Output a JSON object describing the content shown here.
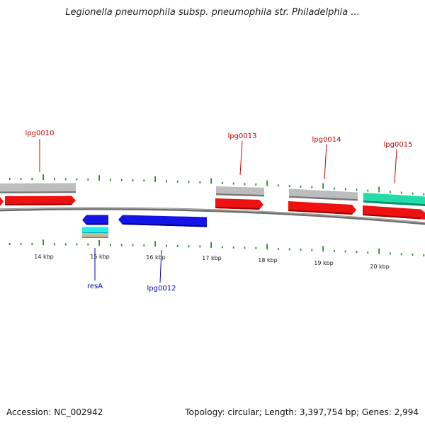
{
  "title": "Legionella pneumophila subsp. pneumophila str. Philadelphia ...",
  "accession": "Accession: NC_002942",
  "summary": "Topology: circular; Length: 3,397,754 bp; Genes: 2,994",
  "colors": {
    "backbone": "#8a8a8a",
    "tick": "#2e8b2e",
    "forward_gene": "#ee1111",
    "reverse_gene": "#1414e6",
    "gray_feature": "#bdbdbd",
    "cyan_feature": "#22eeee",
    "teal_feature": "#22ddaa",
    "tan_feature": "#c8b89a",
    "label_forward": "#cc0000",
    "label_reverse": "#0000bb"
  },
  "scale_labels": [
    "14 kbp",
    "15 kbp",
    "16 kbp",
    "17 kbp",
    "18 kbp",
    "19 kbp",
    "20 kbp"
  ],
  "gene_labels": [
    {
      "text": "lpg0010",
      "strand": "forward"
    },
    {
      "text": "resA",
      "strand": "reverse"
    },
    {
      "text": "lpg0012",
      "strand": "reverse"
    },
    {
      "text": "lpg0013",
      "strand": "forward"
    },
    {
      "text": "lpg0014",
      "strand": "forward"
    },
    {
      "text": "lpg0015",
      "strand": "forward"
    }
  ]
}
